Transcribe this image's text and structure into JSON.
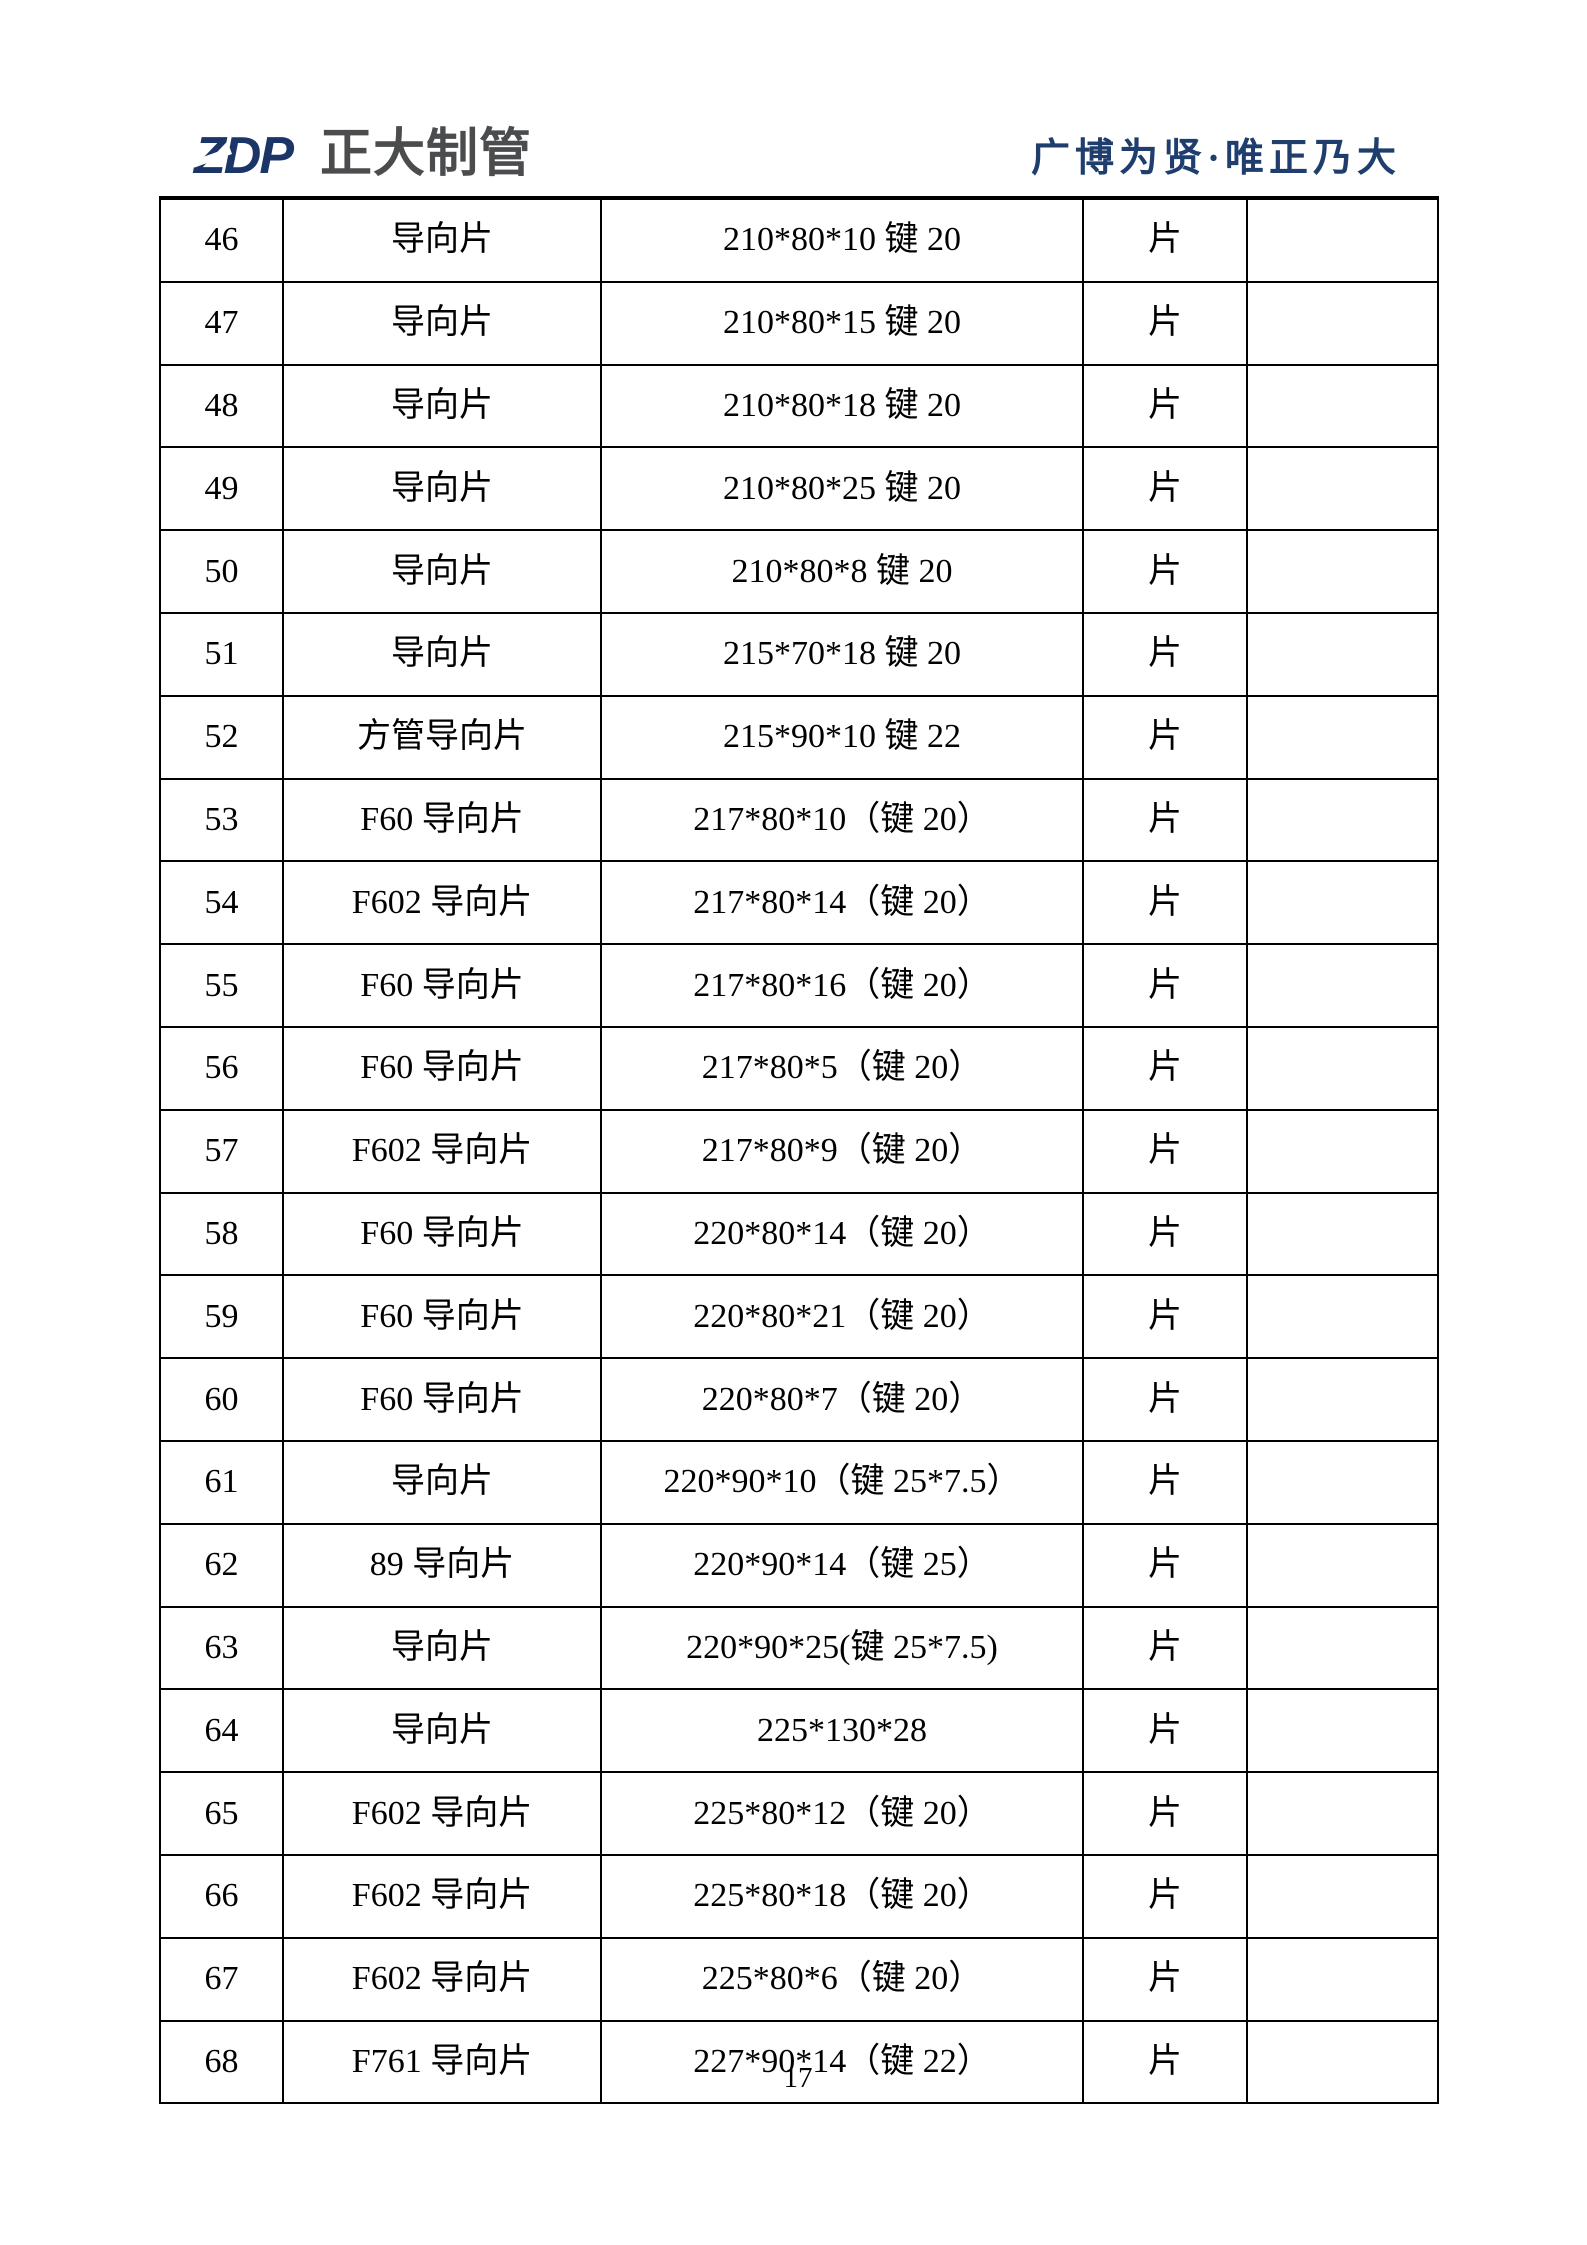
{
  "header": {
    "logo_text": "ZDP",
    "company_name": "正大制管",
    "slogan": "广博为贤·唯正乃大"
  },
  "colors": {
    "logo_navy": "#1b3567",
    "company_gray": "#4a4c4e",
    "slogan_navy": "#1f3e6d",
    "table_border": "#000000"
  },
  "table": {
    "rows": [
      {
        "no": "46",
        "name": "导向片",
        "spec": "210*80*10 键 20",
        "unit": "片",
        "remark": ""
      },
      {
        "no": "47",
        "name": "导向片",
        "spec": "210*80*15 键 20",
        "unit": "片",
        "remark": ""
      },
      {
        "no": "48",
        "name": "导向片",
        "spec": "210*80*18 键 20",
        "unit": "片",
        "remark": ""
      },
      {
        "no": "49",
        "name": "导向片",
        "spec": "210*80*25 键 20",
        "unit": "片",
        "remark": ""
      },
      {
        "no": "50",
        "name": "导向片",
        "spec": "210*80*8 键 20",
        "unit": "片",
        "remark": ""
      },
      {
        "no": "51",
        "name": "导向片",
        "spec": "215*70*18 键 20",
        "unit": "片",
        "remark": ""
      },
      {
        "no": "52",
        "name": "方管导向片",
        "spec": "215*90*10 键 22",
        "unit": "片",
        "remark": ""
      },
      {
        "no": "53",
        "name": "F60 导向片",
        "spec": "217*80*10（键 20）",
        "unit": "片",
        "remark": ""
      },
      {
        "no": "54",
        "name": "F602 导向片",
        "spec": "217*80*14（键 20）",
        "unit": "片",
        "remark": ""
      },
      {
        "no": "55",
        "name": "F60 导向片",
        "spec": "217*80*16（键 20）",
        "unit": "片",
        "remark": ""
      },
      {
        "no": "56",
        "name": "F60 导向片",
        "spec": "217*80*5（键 20）",
        "unit": "片",
        "remark": ""
      },
      {
        "no": "57",
        "name": "F602 导向片",
        "spec": "217*80*9（键 20）",
        "unit": "片",
        "remark": ""
      },
      {
        "no": "58",
        "name": "F60 导向片",
        "spec": "220*80*14（键 20）",
        "unit": "片",
        "remark": ""
      },
      {
        "no": "59",
        "name": "F60 导向片",
        "spec": "220*80*21（键 20）",
        "unit": "片",
        "remark": ""
      },
      {
        "no": "60",
        "name": "F60 导向片",
        "spec": "220*80*7（键 20）",
        "unit": "片",
        "remark": ""
      },
      {
        "no": "61",
        "name": "导向片",
        "spec": "220*90*10（键 25*7.5）",
        "unit": "片",
        "remark": ""
      },
      {
        "no": "62",
        "name": "89 导向片",
        "spec": "220*90*14（键 25）",
        "unit": "片",
        "remark": ""
      },
      {
        "no": "63",
        "name": "导向片",
        "spec": "220*90*25(键 25*7.5)",
        "unit": "片",
        "remark": ""
      },
      {
        "no": "64",
        "name": "导向片",
        "spec": "225*130*28",
        "unit": "片",
        "remark": ""
      },
      {
        "no": "65",
        "name": "F602 导向片",
        "spec": "225*80*12（键 20）",
        "unit": "片",
        "remark": ""
      },
      {
        "no": "66",
        "name": "F602 导向片",
        "spec": "225*80*18（键 20）",
        "unit": "片",
        "remark": ""
      },
      {
        "no": "67",
        "name": "F602 导向片",
        "spec": "225*80*6（键 20）",
        "unit": "片",
        "remark": ""
      },
      {
        "no": "68",
        "name": "F761 导向片",
        "spec": "227*90*14（键 22）",
        "unit": "片",
        "remark": ""
      }
    ]
  },
  "footer": {
    "page_number": "17"
  }
}
